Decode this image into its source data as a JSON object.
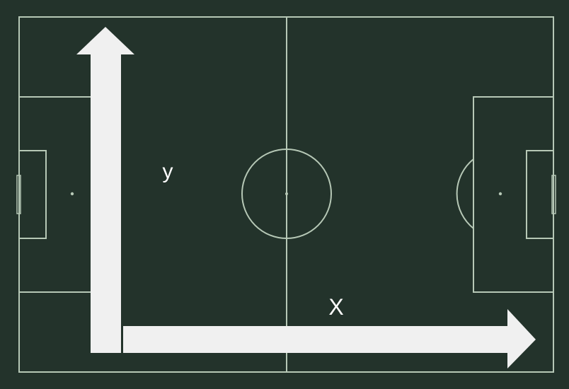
{
  "colors": {
    "pitch": "#23332b",
    "lines": "#b6c8b6",
    "arrows": "#f0f0f0",
    "label": "#ffffff"
  },
  "axes": {
    "y_label": "y",
    "x_label": "X"
  }
}
